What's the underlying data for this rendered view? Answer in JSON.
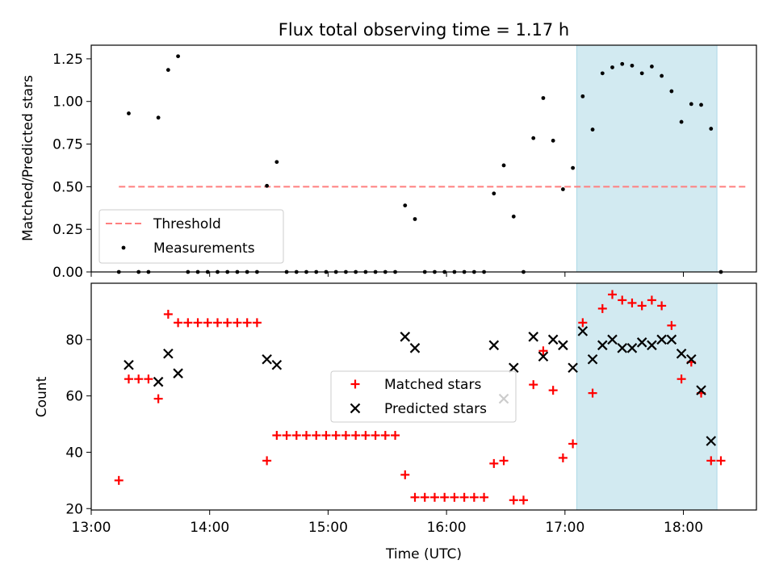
{
  "title": "Flux total observing time = 1.17 h",
  "colors": {
    "threshold": "#ff7f7f",
    "measurement": "#000000",
    "matched": "#ff0000",
    "predicted": "#000000",
    "window": "#add8e6"
  },
  "chart_data": [
    {
      "type": "scatter",
      "ylabel": "Matched/Predicted stars",
      "xlim": [
        "13:00",
        "18:37"
      ],
      "ylim": [
        0,
        1.33
      ],
      "yticks": [
        0.0,
        0.25,
        0.5,
        0.75,
        1.0,
        1.25
      ],
      "ytick_labels": [
        "0.00",
        "0.25",
        "0.50",
        "0.75",
        "1.00",
        "1.25"
      ],
      "highlight_window": [
        "17:06",
        "18:17"
      ],
      "legend_position": "lower-left",
      "threshold": {
        "name": "Threshold",
        "value": 0.5,
        "x_range": [
          "13:14",
          "18:32"
        ]
      },
      "series": [
        {
          "name": "Measurements",
          "marker": "dot",
          "x": [
            "13:14",
            "13:19",
            "13:24",
            "13:29",
            "13:34",
            "13:39",
            "13:44",
            "13:49",
            "13:54",
            "13:59",
            "14:04",
            "14:09",
            "14:14",
            "14:19",
            "14:24",
            "14:29",
            "14:34",
            "14:39",
            "14:44",
            "14:49",
            "14:54",
            "14:59",
            "15:04",
            "15:09",
            "15:14",
            "15:19",
            "15:24",
            "15:29",
            "15:34",
            "15:39",
            "15:44",
            "15:49",
            "15:54",
            "15:59",
            "16:04",
            "16:09",
            "16:14",
            "16:19",
            "16:24",
            "16:29",
            "16:34",
            "16:39",
            "16:44",
            "16:49",
            "16:54",
            "16:59",
            "17:04",
            "17:09",
            "17:14",
            "17:19",
            "17:24",
            "17:29",
            "17:34",
            "17:39",
            "17:44",
            "17:49",
            "17:54",
            "17:59",
            "18:04",
            "18:09",
            "18:14",
            "18:19"
          ],
          "y": [
            0.0,
            0.93,
            0.0,
            0.0,
            0.905,
            1.185,
            1.265,
            0.0,
            0.0,
            0.0,
            0.0,
            0.0,
            0.0,
            0.0,
            0.0,
            0.505,
            0.645,
            0.0,
            0.0,
            0.0,
            0.0,
            0.0,
            0.0,
            0.0,
            0.0,
            0.0,
            0.0,
            0.0,
            0.0,
            0.39,
            0.31,
            0.0,
            0.0,
            0.0,
            0.0,
            0.0,
            0.0,
            0.0,
            0.46,
            0.625,
            0.325,
            0.0,
            0.785,
            1.02,
            0.77,
            0.485,
            0.61,
            1.03,
            0.835,
            1.165,
            1.2,
            1.22,
            1.21,
            1.165,
            1.205,
            1.15,
            1.06,
            0.88,
            0.985,
            0.98,
            0.84,
            0.0
          ]
        }
      ]
    },
    {
      "type": "scatter",
      "xlabel": "Time (UTC)",
      "ylabel": "Count",
      "xlim": [
        "13:00",
        "18:37"
      ],
      "xticks": [
        "13:00",
        "14:00",
        "15:00",
        "16:00",
        "17:00",
        "18:00"
      ],
      "ylim": [
        19.5,
        100
      ],
      "yticks": [
        20,
        40,
        60,
        80
      ],
      "highlight_window": [
        "17:06",
        "18:17"
      ],
      "legend_position": "center",
      "series": [
        {
          "name": "Matched stars",
          "marker": "plus",
          "x": [
            "13:14",
            "13:19",
            "13:24",
            "13:29",
            "13:34",
            "13:39",
            "13:44",
            "13:49",
            "13:54",
            "13:59",
            "14:04",
            "14:09",
            "14:14",
            "14:19",
            "14:24",
            "14:29",
            "14:34",
            "14:39",
            "14:44",
            "14:49",
            "14:54",
            "14:59",
            "15:04",
            "15:09",
            "15:14",
            "15:19",
            "15:24",
            "15:29",
            "15:34",
            "15:39",
            "15:44",
            "15:49",
            "15:54",
            "15:59",
            "16:04",
            "16:09",
            "16:14",
            "16:19",
            "16:24",
            "16:29",
            "16:34",
            "16:39",
            "16:44",
            "16:49",
            "16:54",
            "16:59",
            "17:04",
            "17:09",
            "17:14",
            "17:19",
            "17:24",
            "17:29",
            "17:34",
            "17:39",
            "17:44",
            "17:49",
            "17:54",
            "17:59",
            "18:04",
            "18:09",
            "18:14",
            "18:19"
          ],
          "y": [
            30,
            66,
            66,
            66,
            59,
            89,
            86,
            86,
            86,
            86,
            86,
            86,
            86,
            86,
            86,
            37,
            46,
            46,
            46,
            46,
            46,
            46,
            46,
            46,
            46,
            46,
            46,
            46,
            46,
            32,
            24,
            24,
            24,
            24,
            24,
            24,
            24,
            24,
            36,
            37,
            23,
            23,
            64,
            76,
            62,
            38,
            43,
            86,
            61,
            91,
            96,
            94,
            93,
            92,
            94,
            92,
            85,
            66,
            72,
            61,
            37,
            37
          ]
        },
        {
          "name": "Predicted stars",
          "marker": "x",
          "x": [
            "13:19",
            "13:34",
            "13:39",
            "13:44",
            "14:29",
            "14:34",
            "15:39",
            "15:44",
            "16:24",
            "16:29",
            "16:34",
            "16:44",
            "16:49",
            "16:54",
            "16:59",
            "17:04",
            "17:09",
            "17:14",
            "17:19",
            "17:24",
            "17:29",
            "17:34",
            "17:39",
            "17:44",
            "17:49",
            "17:54",
            "17:59",
            "18:04",
            "18:09",
            "18:14"
          ],
          "y": [
            71,
            65,
            75,
            68,
            73,
            71,
            81,
            77,
            78,
            59,
            70,
            81,
            74,
            80,
            78,
            70,
            83,
            73,
            78,
            80,
            77,
            77,
            79,
            78,
            80,
            80,
            75,
            73,
            62,
            44
          ]
        }
      ]
    }
  ]
}
